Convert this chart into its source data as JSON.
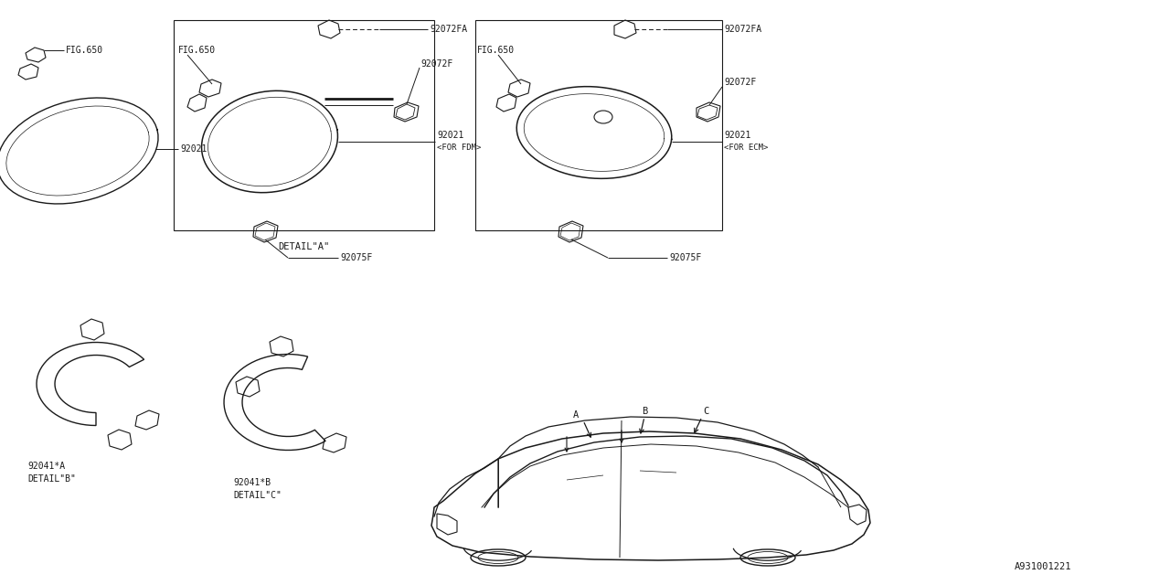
{
  "bg_color": "#ffffff",
  "line_color": "#1a1a1a",
  "text_color": "#1a1a1a",
  "fig_number": "A931001221",
  "lw_main": 1.0,
  "lw_thin": 0.6,
  "lw_leader": 0.7,
  "fontsize_label": 7.0,
  "fontsize_detail": 7.5,
  "parts_labels": {
    "92021": "92021",
    "92072FA": "92072FA",
    "92072F": "92072F",
    "92075F": "92075F",
    "FIG650": "FIG.650",
    "92041A": "92041*A",
    "92041B": "92041*B",
    "detail_a": "DETAIL\"A\"",
    "detail_b": "DETAIL\"B\"",
    "detail_c": "DETAIL\"C\"",
    "for_fdm": "<FOR FDM>",
    "for_ecm": "<FOR ECM>"
  }
}
